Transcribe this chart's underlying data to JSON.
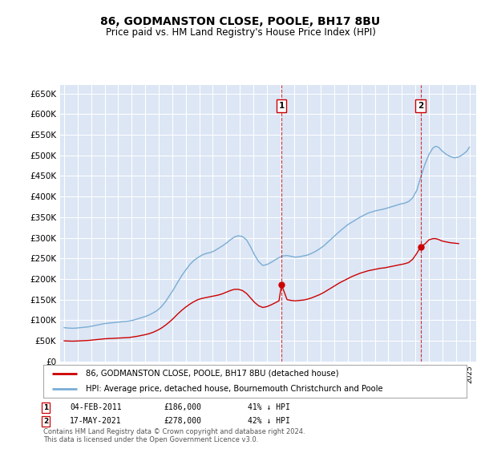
{
  "title": "86, GODMANSTON CLOSE, POOLE, BH17 8BU",
  "subtitle": "Price paid vs. HM Land Registry's House Price Index (HPI)",
  "ylim": [
    0,
    670000
  ],
  "yticks": [
    0,
    50000,
    100000,
    150000,
    200000,
    250000,
    300000,
    350000,
    400000,
    450000,
    500000,
    550000,
    600000,
    650000
  ],
  "xlim_start": 1994.7,
  "xlim_end": 2025.5,
  "bg_color": "#dce6f5",
  "grid_color": "#ffffff",
  "red_line_color": "#cc0000",
  "blue_line_color": "#7aadd4",
  "transaction1": {
    "date_x": 2011.09,
    "price": 186000,
    "label": "1",
    "date_str": "04-FEB-2011",
    "price_str": "£186,000",
    "hpi_str": "41% ↓ HPI"
  },
  "transaction2": {
    "date_x": 2021.38,
    "price": 278000,
    "label": "2",
    "date_str": "17-MAY-2021",
    "price_str": "£278,000",
    "hpi_str": "42% ↓ HPI"
  },
  "legend_line1": "86, GODMANSTON CLOSE, POOLE, BH17 8BU (detached house)",
  "legend_line2": "HPI: Average price, detached house, Bournemouth Christchurch and Poole",
  "footer1": "Contains HM Land Registry data © Crown copyright and database right 2024.",
  "footer2": "This data is licensed under the Open Government Licence v3.0.",
  "hpi_data": {
    "years": [
      1995.0,
      1995.3,
      1995.6,
      1995.9,
      1996.2,
      1996.5,
      1996.8,
      1997.1,
      1997.4,
      1997.7,
      1998.0,
      1998.3,
      1998.6,
      1998.9,
      1999.2,
      1999.5,
      1999.8,
      2000.1,
      2000.4,
      2000.7,
      2001.0,
      2001.3,
      2001.6,
      2001.9,
      2002.2,
      2002.5,
      2002.8,
      2003.1,
      2003.4,
      2003.7,
      2004.0,
      2004.3,
      2004.6,
      2004.9,
      2005.2,
      2005.5,
      2005.8,
      2006.1,
      2006.4,
      2006.7,
      2007.0,
      2007.3,
      2007.6,
      2007.9,
      2008.2,
      2008.5,
      2008.8,
      2009.1,
      2009.4,
      2009.7,
      2010.0,
      2010.3,
      2010.6,
      2010.9,
      2011.2,
      2011.5,
      2011.8,
      2012.1,
      2012.4,
      2012.7,
      2013.0,
      2013.3,
      2013.6,
      2013.9,
      2014.2,
      2014.5,
      2014.8,
      2015.1,
      2015.4,
      2015.7,
      2016.0,
      2016.3,
      2016.6,
      2016.9,
      2017.2,
      2017.5,
      2017.8,
      2018.1,
      2018.4,
      2018.7,
      2019.0,
      2019.3,
      2019.6,
      2019.9,
      2020.2,
      2020.5,
      2020.8,
      2021.1,
      2021.4,
      2021.7,
      2022.0,
      2022.3,
      2022.5,
      2022.7,
      2023.0,
      2023.3,
      2023.6,
      2023.9,
      2024.2,
      2024.5,
      2024.8,
      2025.0
    ],
    "values": [
      82000,
      81000,
      80500,
      81000,
      82000,
      83000,
      84000,
      86000,
      88000,
      90000,
      92000,
      93000,
      94000,
      95000,
      96000,
      97000,
      98000,
      100000,
      103000,
      106000,
      109000,
      113000,
      118000,
      124000,
      133000,
      145000,
      160000,
      175000,
      192000,
      208000,
      222000,
      235000,
      245000,
      252000,
      258000,
      262000,
      264000,
      268000,
      274000,
      280000,
      287000,
      295000,
      302000,
      305000,
      303000,
      295000,
      278000,
      258000,
      242000,
      233000,
      235000,
      240000,
      246000,
      252000,
      256000,
      257000,
      255000,
      253000,
      254000,
      256000,
      258000,
      262000,
      267000,
      273000,
      280000,
      289000,
      298000,
      307000,
      316000,
      324000,
      332000,
      338000,
      344000,
      350000,
      355000,
      360000,
      363000,
      366000,
      368000,
      370000,
      373000,
      376000,
      379000,
      382000,
      384000,
      388000,
      397000,
      415000,
      448000,
      478000,
      502000,
      518000,
      522000,
      520000,
      510000,
      502000,
      497000,
      494000,
      496000,
      502000,
      510000,
      520000
    ]
  },
  "price_data": {
    "years": [
      1995.0,
      1995.3,
      1995.6,
      1995.9,
      1996.2,
      1996.5,
      1996.8,
      1997.1,
      1997.4,
      1997.7,
      1998.0,
      1998.3,
      1998.6,
      1998.9,
      1999.2,
      1999.5,
      1999.8,
      2000.1,
      2000.4,
      2000.7,
      2001.0,
      2001.3,
      2001.6,
      2001.9,
      2002.2,
      2002.5,
      2002.8,
      2003.1,
      2003.4,
      2003.7,
      2004.0,
      2004.3,
      2004.6,
      2004.9,
      2005.2,
      2005.5,
      2005.8,
      2006.1,
      2006.4,
      2006.7,
      2007.0,
      2007.3,
      2007.6,
      2007.9,
      2008.2,
      2008.5,
      2008.8,
      2009.1,
      2009.4,
      2009.7,
      2010.0,
      2010.3,
      2010.6,
      2010.9,
      2011.09,
      2011.5,
      2011.8,
      2012.1,
      2012.4,
      2012.7,
      2013.0,
      2013.3,
      2013.6,
      2013.9,
      2014.2,
      2014.5,
      2014.8,
      2015.1,
      2015.4,
      2015.7,
      2016.0,
      2016.3,
      2016.6,
      2016.9,
      2017.2,
      2017.5,
      2017.8,
      2018.1,
      2018.4,
      2018.7,
      2019.0,
      2019.3,
      2019.6,
      2019.9,
      2020.2,
      2020.5,
      2020.8,
      2021.1,
      2021.38,
      2021.7,
      2022.0,
      2022.3,
      2022.5,
      2022.7,
      2023.0,
      2023.3,
      2023.6,
      2023.9,
      2024.2
    ],
    "values": [
      50000,
      49500,
      49200,
      49500,
      50000,
      50500,
      51000,
      52000,
      53000,
      54000,
      55000,
      55500,
      56000,
      56500,
      57000,
      57500,
      58000,
      59500,
      61000,
      63000,
      65000,
      67500,
      71000,
      75500,
      81000,
      88000,
      96000,
      105000,
      115000,
      124000,
      132000,
      139000,
      145000,
      150000,
      153000,
      155000,
      157000,
      159000,
      161000,
      164000,
      168000,
      172000,
      175000,
      175000,
      172000,
      165000,
      154000,
      143000,
      135000,
      131000,
      133000,
      137000,
      142000,
      147000,
      186000,
      150000,
      148000,
      147000,
      148000,
      149000,
      151000,
      154000,
      158000,
      162000,
      167000,
      173000,
      179000,
      185000,
      191000,
      196000,
      201000,
      206000,
      210000,
      214000,
      217000,
      220000,
      222000,
      224000,
      226000,
      227000,
      229000,
      231000,
      233000,
      235000,
      237000,
      240000,
      248000,
      262000,
      278000,
      285000,
      295000,
      298000,
      298000,
      296000,
      292000,
      290000,
      288000,
      287000,
      286000
    ]
  }
}
